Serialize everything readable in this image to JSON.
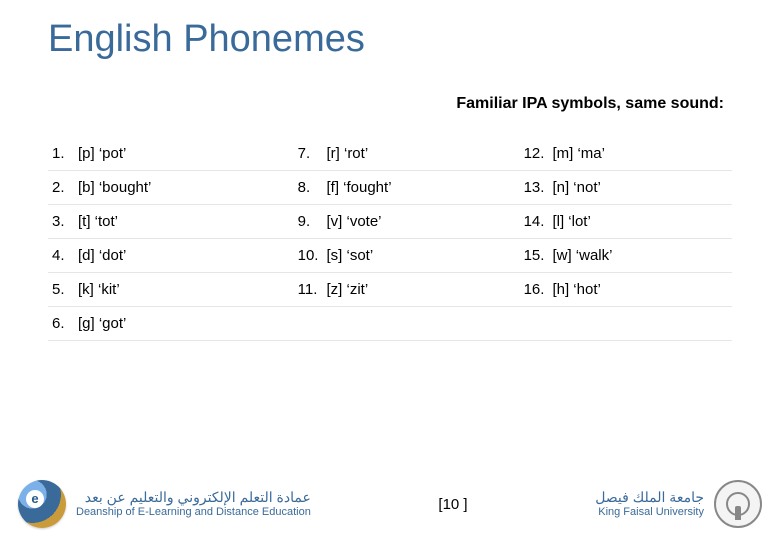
{
  "title": "English Phonemes",
  "subtitle": "Familiar IPA symbols, same sound:",
  "rows": [
    {
      "c1n": "1.",
      "c1t": "[p] ‘pot’",
      "c2n": "7.",
      "c2t": "[r] ‘rot’",
      "c3n": "12.",
      "c3t": "[m] ‘ma’"
    },
    {
      "c1n": "2.",
      "c1t": "[b] ‘bought’",
      "c2n": "8.",
      "c2t": "[f] ‘fought’",
      "c3n": "13.",
      "c3t": "[n] ‘not’"
    },
    {
      "c1n": "3.",
      "c1t": "[t] ‘tot’",
      "c2n": "9.",
      "c2t": "[v] ‘vote’",
      "c3n": "14.",
      "c3t": "[l] ‘lot’"
    },
    {
      "c1n": "4.",
      "c1t": "[d] ‘dot’",
      "c2n": "10.",
      "c2t": "[s] ‘sot’",
      "c3n": "15.",
      "c3t": "[w] ‘walk’"
    },
    {
      "c1n": "5.",
      "c1t": "[k] ‘kit’",
      "c2n": "11.",
      "c2t": "[z] ‘zit’",
      "c3n": "16.",
      "c3t": "[h] ‘hot’"
    },
    {
      "c1n": "6.",
      "c1t": "[g] ‘got’",
      "c2n": "",
      "c2t": "",
      "c3n": "",
      "c3t": ""
    }
  ],
  "footer": {
    "dean_ar": "عمادة التعلم الإلكتروني والتعليم عن بعد",
    "dean_en": "Deanship of E-Learning and Distance Education",
    "page": "10",
    "uni_ar": "جامعة الملك فيصل",
    "uni_en": "King Faisal University"
  },
  "colors": {
    "title": "#3a6a9a",
    "text": "#000000",
    "row_border": "#e6e6e6",
    "footer_text": "#3a6a9a"
  },
  "typography": {
    "title_fontsize": 38,
    "subtitle_fontsize": 16,
    "cell_fontsize": 15,
    "footer_ar_fontsize": 14,
    "footer_en_fontsize": 11
  }
}
